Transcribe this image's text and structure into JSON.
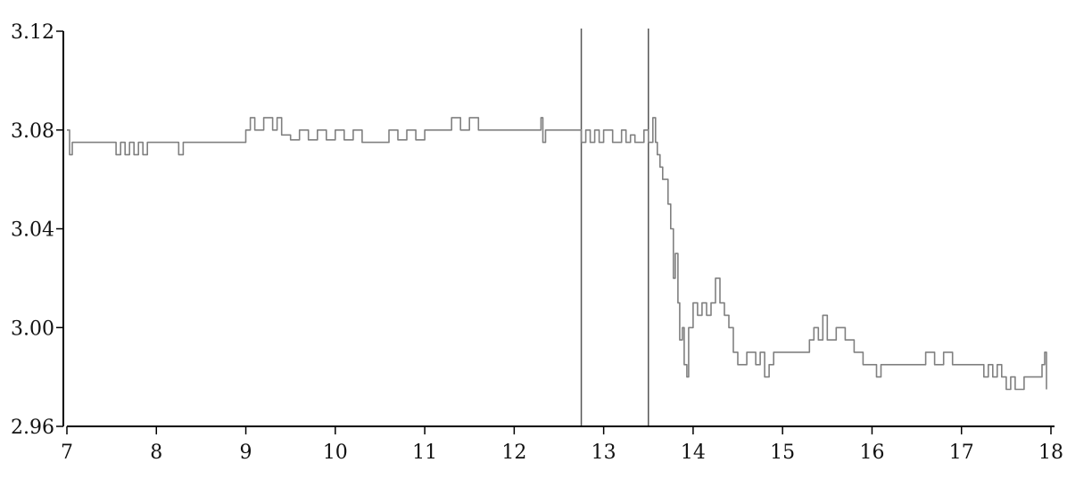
{
  "chart_data": {
    "type": "line",
    "title": "",
    "xlabel": "",
    "ylabel": "",
    "xlim": [
      7,
      18
    ],
    "ylim": [
      2.96,
      3.12
    ],
    "x_ticks": [
      7,
      8,
      9,
      10,
      11,
      12,
      13,
      14,
      15,
      16,
      17,
      18
    ],
    "x_tick_labels": [
      "7",
      "8",
      "9",
      "10",
      "11",
      "12",
      "13",
      "14",
      "15",
      "16",
      "17",
      "18"
    ],
    "y_ticks": [
      2.96,
      3.0,
      3.04,
      3.08,
      3.12
    ],
    "y_tick_labels": [
      "2.96",
      "3.00",
      "3.04",
      "3.08",
      "3.12"
    ],
    "grid": false,
    "legend": "none",
    "vertical_markers": [
      12.75,
      13.5
    ],
    "series_color": "#808080",
    "series": [
      {
        "x": [
          7.0,
          7.03,
          7.06,
          7.5,
          7.55,
          7.6,
          7.65,
          7.7,
          7.75,
          7.8,
          7.85,
          7.9,
          7.95,
          8.0,
          8.1,
          8.2,
          8.25,
          8.3,
          9.0,
          9.05,
          9.1,
          9.2,
          9.3,
          9.35,
          9.4,
          9.5,
          9.6,
          9.7,
          9.8,
          9.9,
          10.0,
          10.1,
          10.2,
          10.3,
          10.35,
          10.4,
          10.5,
          10.6,
          10.7,
          10.8,
          10.9,
          11.0,
          11.2,
          11.3,
          11.4,
          11.5,
          11.6,
          11.8,
          12.0,
          12.2,
          12.3,
          12.32,
          12.35,
          12.5,
          12.65,
          12.75,
          12.8,
          12.85,
          12.9,
          12.95,
          13.0,
          13.05,
          13.1,
          13.2,
          13.25,
          13.3,
          13.35,
          13.4,
          13.45,
          13.5,
          13.55,
          13.58,
          13.6,
          13.63,
          13.66,
          13.7,
          13.72,
          13.75,
          13.78,
          13.8,
          13.83,
          13.85,
          13.88,
          13.9,
          13.93,
          13.95,
          14.0,
          14.05,
          14.1,
          14.15,
          14.2,
          14.25,
          14.3,
          14.35,
          14.4,
          14.45,
          14.5,
          14.6,
          14.7,
          14.75,
          14.8,
          14.85,
          14.9,
          15.0,
          15.1,
          15.2,
          15.3,
          15.35,
          15.4,
          15.45,
          15.5,
          15.6,
          15.7,
          15.8,
          15.9,
          16.0,
          16.05,
          16.1,
          16.2,
          16.3,
          16.4,
          16.5,
          16.6,
          16.7,
          16.8,
          16.9,
          17.0,
          17.1,
          17.2,
          17.25,
          17.3,
          17.35,
          17.4,
          17.45,
          17.5,
          17.55,
          17.6,
          17.7,
          17.8,
          17.85,
          17.9,
          17.93,
          17.95
        ],
        "y": [
          3.08,
          3.07,
          3.075,
          3.075,
          3.07,
          3.075,
          3.07,
          3.075,
          3.07,
          3.075,
          3.07,
          3.075,
          3.075,
          3.075,
          3.075,
          3.075,
          3.07,
          3.075,
          3.08,
          3.085,
          3.08,
          3.085,
          3.08,
          3.085,
          3.078,
          3.076,
          3.08,
          3.076,
          3.08,
          3.076,
          3.08,
          3.076,
          3.08,
          3.075,
          3.075,
          3.075,
          3.075,
          3.08,
          3.076,
          3.08,
          3.076,
          3.08,
          3.08,
          3.085,
          3.08,
          3.085,
          3.08,
          3.08,
          3.08,
          3.08,
          3.085,
          3.075,
          3.08,
          3.08,
          3.08,
          3.075,
          3.08,
          3.075,
          3.08,
          3.075,
          3.08,
          3.08,
          3.075,
          3.08,
          3.075,
          3.078,
          3.075,
          3.075,
          3.08,
          3.075,
          3.085,
          3.075,
          3.07,
          3.065,
          3.06,
          3.06,
          3.05,
          3.04,
          3.02,
          3.03,
          3.01,
          2.995,
          3.0,
          2.985,
          2.98,
          3.0,
          3.01,
          3.005,
          3.01,
          3.005,
          3.01,
          3.02,
          3.01,
          3.005,
          3.0,
          2.99,
          2.985,
          2.99,
          2.985,
          2.99,
          2.98,
          2.985,
          2.99,
          2.99,
          2.99,
          2.99,
          2.995,
          3.0,
          2.995,
          3.005,
          2.995,
          3.0,
          2.995,
          2.99,
          2.985,
          2.985,
          2.98,
          2.985,
          2.985,
          2.985,
          2.985,
          2.985,
          2.99,
          2.985,
          2.99,
          2.985,
          2.985,
          2.985,
          2.985,
          2.98,
          2.985,
          2.98,
          2.985,
          2.98,
          2.975,
          2.98,
          2.975,
          2.98,
          2.98,
          2.98,
          2.985,
          2.99,
          2.975
        ]
      }
    ]
  }
}
